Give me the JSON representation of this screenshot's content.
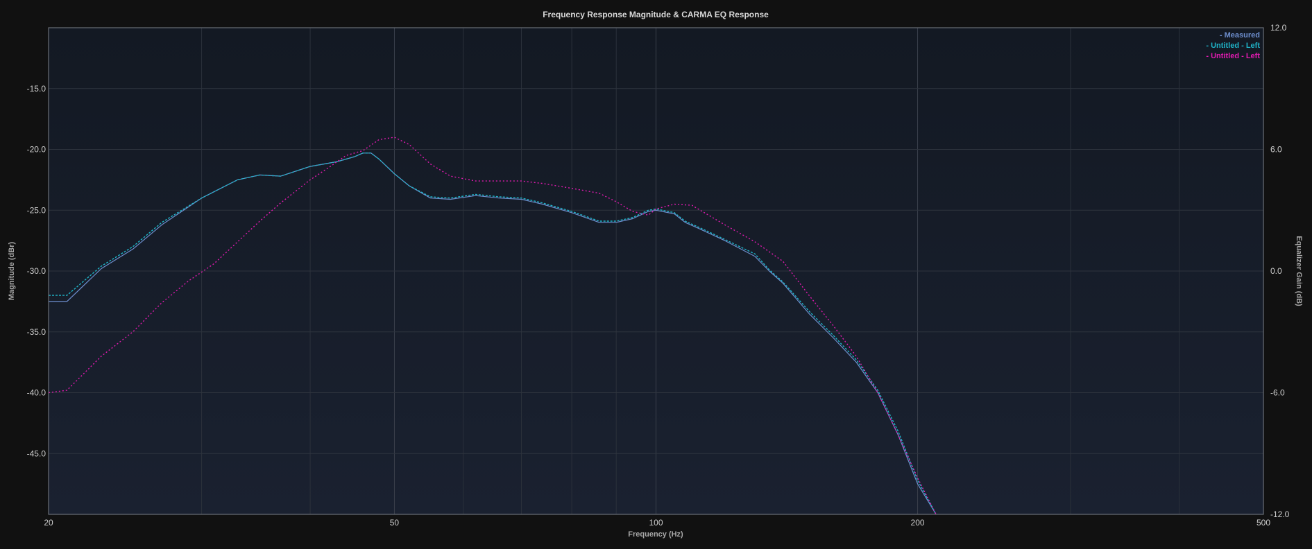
{
  "chart_data": {
    "type": "line",
    "title": "Frequency Response Magnitude & CARMA EQ Response",
    "xlabel": "Frequency (Hz)",
    "ylabel": "Magnitude (dBr)",
    "y2label": "Equalizer Gain (dB)",
    "x_scale": "log",
    "xlim": [
      20,
      500
    ],
    "ylim": [
      -50,
      -10
    ],
    "y2lim": [
      -12,
      12
    ],
    "x_ticks": [
      20,
      50,
      100,
      200,
      500
    ],
    "y_ticks": [
      -45,
      -40,
      -35,
      -30,
      -25,
      -20,
      -15
    ],
    "y2_ticks": [
      -12,
      -6,
      0,
      6,
      12
    ],
    "y2_tick_labels": [
      "-12.0",
      "-6.0",
      "0.0",
      "6.0",
      "12.0"
    ],
    "grid": true,
    "legend_position": "top-right",
    "series": [
      {
        "name": "- Measured",
        "color": "#6e8fcf",
        "style": "solid",
        "x": [
          20,
          21,
          23,
          25,
          27,
          30,
          33,
          35,
          37,
          40,
          43,
          45,
          46,
          47,
          48,
          50,
          52,
          55,
          58,
          62,
          66,
          70,
          74,
          80,
          86,
          90,
          94,
          98,
          100,
          105,
          108,
          112,
          120,
          130,
          135,
          140,
          150,
          160,
          170,
          180,
          190,
          200,
          210
        ],
        "y": [
          -32.5,
          -32.5,
          -29.8,
          -28.2,
          -26.2,
          -24.0,
          -22.5,
          -22.1,
          -22.2,
          -21.4,
          -21.0,
          -20.6,
          -20.3,
          -20.3,
          -20.8,
          -22.0,
          -23.0,
          -24.0,
          -24.1,
          -23.8,
          -24.0,
          -24.1,
          -24.5,
          -25.2,
          -26.0,
          -26.0,
          -25.7,
          -25.1,
          -25.0,
          -25.3,
          -26.0,
          -26.5,
          -27.5,
          -28.8,
          -30.0,
          -31.0,
          -33.5,
          -35.5,
          -37.5,
          -40.0,
          -43.5,
          -47.5,
          -50.0
        ]
      },
      {
        "name": "- Untitled - Left",
        "color": "#1fb3c8",
        "style": "dashed",
        "x": [
          20,
          21,
          23,
          25,
          27,
          30,
          33,
          35,
          37,
          40,
          43,
          45,
          46,
          47,
          48,
          50,
          52,
          55,
          58,
          62,
          66,
          70,
          74,
          80,
          86,
          90,
          94,
          98,
          100,
          105,
          108,
          112,
          120,
          130,
          135,
          140,
          150,
          160,
          170,
          180,
          190,
          200,
          210
        ],
        "y": [
          -32.0,
          -32.0,
          -29.6,
          -28.0,
          -26.0,
          -24.0,
          -22.5,
          -22.1,
          -22.2,
          -21.4,
          -21.0,
          -20.6,
          -20.3,
          -20.3,
          -20.8,
          -22.0,
          -23.0,
          -23.9,
          -24.0,
          -23.7,
          -23.9,
          -24.0,
          -24.4,
          -25.1,
          -25.9,
          -25.9,
          -25.6,
          -25.0,
          -24.9,
          -25.2,
          -25.9,
          -26.4,
          -27.4,
          -28.6,
          -29.9,
          -30.9,
          -33.3,
          -35.3,
          -37.3,
          -39.8,
          -43.2,
          -47.2,
          -50.0
        ]
      },
      {
        "name": "- Untitled - Left",
        "color": "#e01bb0",
        "style": "dotted",
        "x": [
          20,
          21,
          23,
          25,
          27,
          29,
          31,
          33,
          35,
          37,
          40,
          42,
          44,
          46,
          48,
          50,
          52,
          55,
          58,
          62,
          66,
          70,
          74,
          80,
          86,
          90,
          94,
          98,
          100,
          105,
          110,
          120,
          130,
          140,
          150,
          160,
          170,
          180,
          190,
          200,
          210
        ],
        "y": [
          -40.0,
          -39.8,
          -37.0,
          -35.0,
          -32.6,
          -30.8,
          -29.4,
          -27.6,
          -25.9,
          -24.4,
          -22.5,
          -21.5,
          -20.5,
          -20.1,
          -19.2,
          -19.0,
          -19.6,
          -21.2,
          -22.2,
          -22.6,
          -22.6,
          -22.6,
          -22.8,
          -23.2,
          -23.6,
          -24.3,
          -25.1,
          -25.4,
          -24.9,
          -24.5,
          -24.6,
          -26.2,
          -27.6,
          -29.2,
          -32.0,
          -34.5,
          -37.0,
          -40.0,
          -43.5,
          -47.0,
          -50.0
        ]
      }
    ]
  }
}
